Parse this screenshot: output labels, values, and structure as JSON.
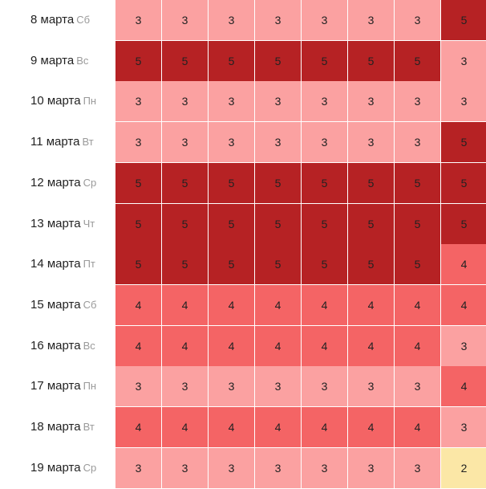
{
  "colors": {
    "2": "#fbe7a6",
    "3": "#fba1a1",
    "4": "#f46465",
    "5": "#b62224"
  },
  "rows": [
    {
      "date": "8 марта",
      "weekday": "Сб",
      "values": [
        3,
        3,
        3,
        3,
        3,
        3,
        3,
        5
      ]
    },
    {
      "date": "9 марта",
      "weekday": "Вс",
      "values": [
        5,
        5,
        5,
        5,
        5,
        5,
        5,
        3
      ]
    },
    {
      "date": "10 марта",
      "weekday": "Пн",
      "values": [
        3,
        3,
        3,
        3,
        3,
        3,
        3,
        3
      ]
    },
    {
      "date": "11 марта",
      "weekday": "Вт",
      "values": [
        3,
        3,
        3,
        3,
        3,
        3,
        3,
        5
      ]
    },
    {
      "date": "12 марта",
      "weekday": "Ср",
      "values": [
        5,
        5,
        5,
        5,
        5,
        5,
        5,
        5
      ]
    },
    {
      "date": "13 марта",
      "weekday": "Чт",
      "values": [
        5,
        5,
        5,
        5,
        5,
        5,
        5,
        5
      ]
    },
    {
      "date": "14 марта",
      "weekday": "Пт",
      "values": [
        5,
        5,
        5,
        5,
        5,
        5,
        5,
        4
      ]
    },
    {
      "date": "15 марта",
      "weekday": "Сб",
      "values": [
        4,
        4,
        4,
        4,
        4,
        4,
        4,
        4
      ]
    },
    {
      "date": "16 марта",
      "weekday": "Вс",
      "values": [
        4,
        4,
        4,
        4,
        4,
        4,
        4,
        3
      ]
    },
    {
      "date": "17 марта",
      "weekday": "Пн",
      "values": [
        3,
        3,
        3,
        3,
        3,
        3,
        3,
        4
      ]
    },
    {
      "date": "18 марта",
      "weekday": "Вт",
      "values": [
        4,
        4,
        4,
        4,
        4,
        4,
        4,
        3
      ]
    },
    {
      "date": "19 марта",
      "weekday": "Ср",
      "values": [
        3,
        3,
        3,
        3,
        3,
        3,
        3,
        2
      ]
    }
  ]
}
